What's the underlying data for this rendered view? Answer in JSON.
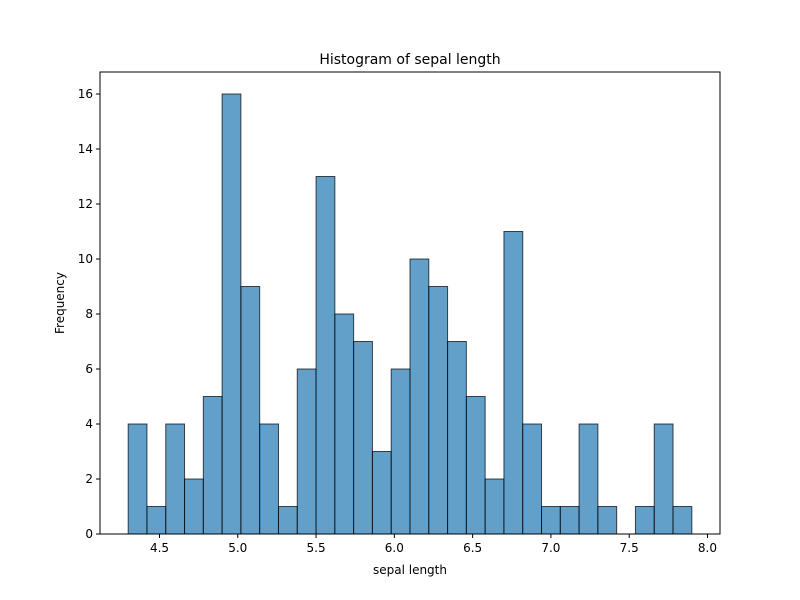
{
  "chart_data": {
    "type": "bar",
    "title": "Histogram of sepal length",
    "xlabel": "sepal length",
    "ylabel": "Frequency",
    "bin_start": 4.3,
    "bin_end": 7.9,
    "bin_count": 30,
    "values": [
      4,
      1,
      4,
      2,
      5,
      16,
      9,
      4,
      1,
      6,
      13,
      8,
      7,
      3,
      6,
      10,
      9,
      7,
      5,
      2,
      11,
      4,
      1,
      1,
      4,
      1,
      0,
      1,
      4,
      1
    ],
    "xlim": [
      4.12,
      8.08
    ],
    "ylim": [
      0,
      16.8
    ],
    "xticks": [
      4.5,
      5.0,
      5.5,
      6.0,
      6.5,
      7.0,
      7.5,
      8.0
    ],
    "xtick_labels": [
      "4.5",
      "5.0",
      "5.5",
      "6.0",
      "6.5",
      "7.0",
      "7.5",
      "8.0"
    ],
    "yticks": [
      0,
      2,
      4,
      6,
      8,
      10,
      12,
      14,
      16
    ],
    "ytick_labels": [
      "0",
      "2",
      "4",
      "6",
      "8",
      "10",
      "12",
      "14",
      "16"
    ],
    "bar_color": "#1f77b4",
    "bar_edge_color": "#000000",
    "grid": false,
    "legend": false
  }
}
